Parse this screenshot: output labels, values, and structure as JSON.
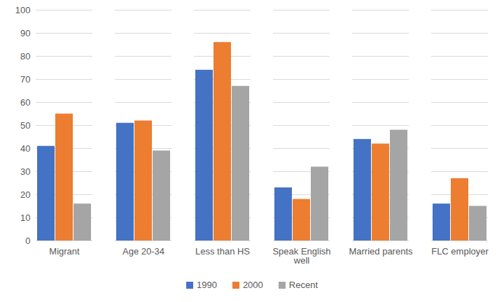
{
  "chart_data": {
    "type": "bar",
    "categories": [
      "Migrant",
      "Age 20-34",
      "Less than HS",
      "Speak English well",
      "Married parents",
      "FLC employer"
    ],
    "series": [
      {
        "name": "1990",
        "color": "#4472c4",
        "values": [
          41,
          51,
          74,
          23,
          44,
          16
        ]
      },
      {
        "name": "2000",
        "color": "#ed7d31",
        "values": [
          55,
          52,
          86,
          18,
          42,
          27
        ]
      },
      {
        "name": "Recent",
        "color": "#a5a5a5",
        "values": [
          16,
          39,
          67,
          32,
          48,
          15
        ]
      }
    ],
    "ylim": [
      0,
      100
    ],
    "yticks": [
      0,
      10,
      20,
      30,
      40,
      50,
      60,
      70,
      80,
      90,
      100
    ],
    "grid": true,
    "legend": "bottom"
  }
}
